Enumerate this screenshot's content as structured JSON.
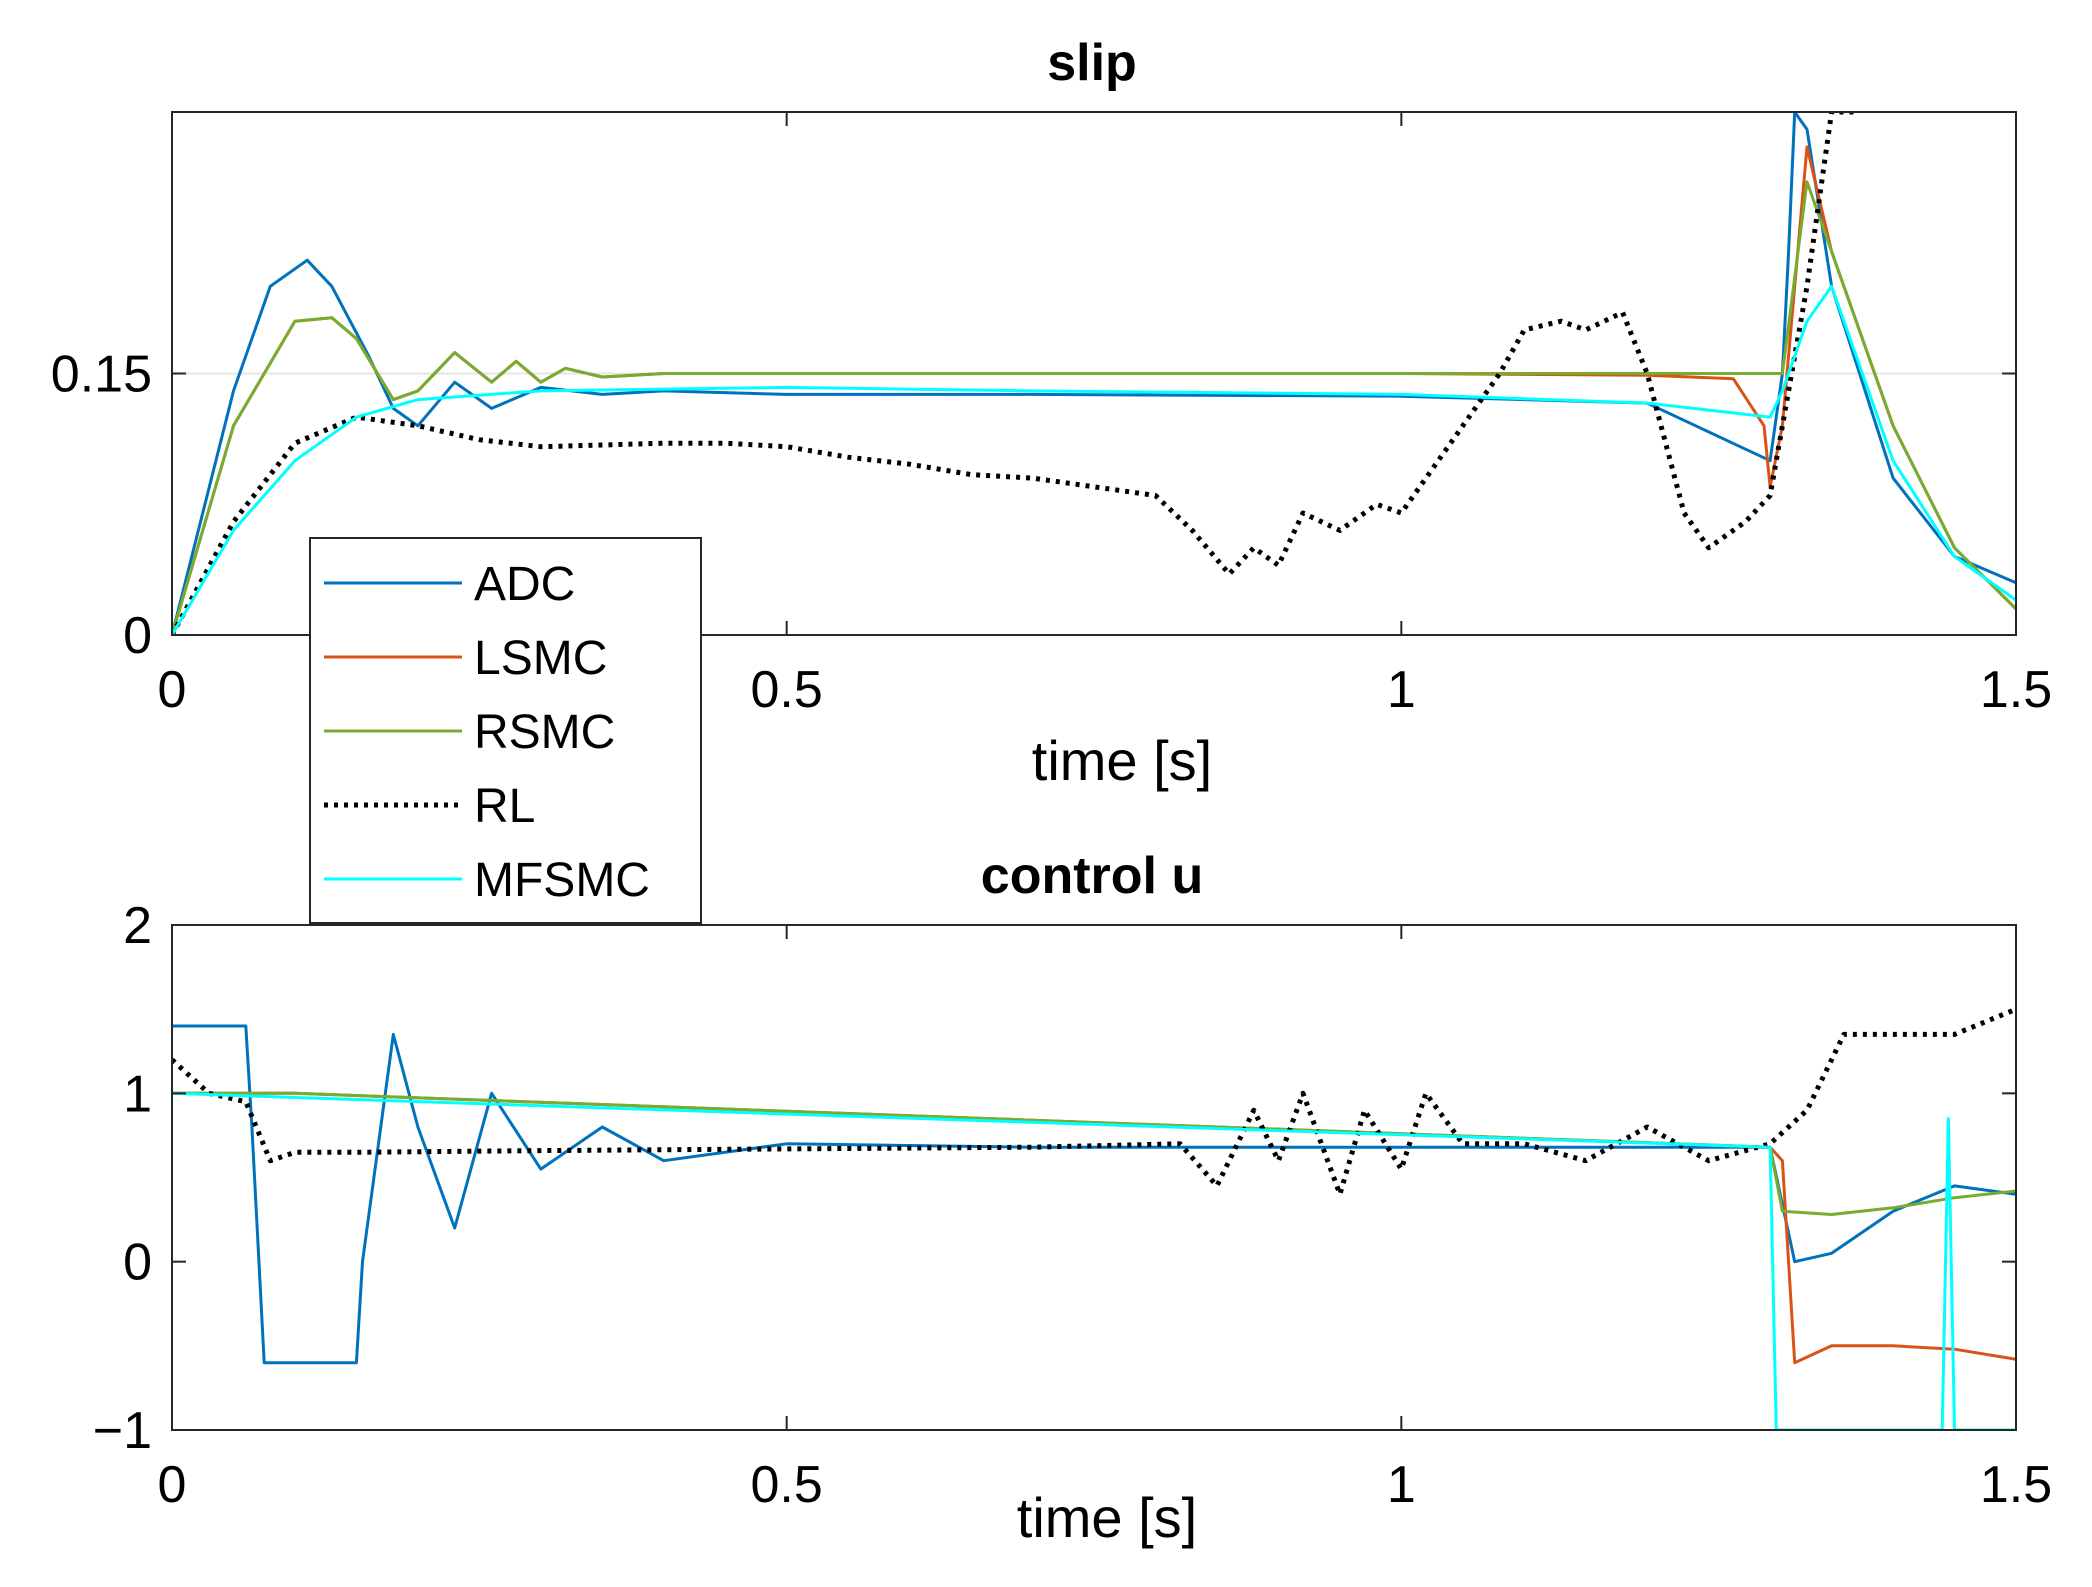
{
  "chart_data": [
    {
      "type": "line",
      "title": "slip",
      "xlabel": "time [s]",
      "ylabel": "",
      "xlim": [
        0,
        1.5
      ],
      "ylim": [
        0,
        0.3
      ],
      "xticks": [
        0,
        0.5,
        1,
        1.5
      ],
      "xtick_labels": [
        "0",
        "0.5",
        "1",
        "1.5"
      ],
      "yticks": [
        0,
        0.15
      ],
      "ytick_labels": [
        "0",
        "0.15"
      ],
      "reference_line": 0.15,
      "series": [
        {
          "name": "ADC",
          "color": "#0072BD",
          "style": "solid",
          "x": [
            0,
            0.05,
            0.08,
            0.11,
            0.13,
            0.16,
            0.18,
            0.2,
            0.23,
            0.26,
            0.3,
            0.35,
            0.4,
            0.5,
            0.7,
            1.0,
            1.2,
            1.3,
            1.31,
            1.315,
            1.32,
            1.33,
            1.35,
            1.4,
            1.45,
            1.5
          ],
          "y": [
            0,
            0.14,
            0.2,
            0.215,
            0.2,
            0.16,
            0.13,
            0.12,
            0.145,
            0.13,
            0.142,
            0.138,
            0.14,
            0.138,
            0.138,
            0.137,
            0.133,
            0.1,
            0.15,
            0.22,
            0.3,
            0.29,
            0.2,
            0.09,
            0.045,
            0.03
          ]
        },
        {
          "name": "LSMC",
          "color": "#D95319",
          "style": "solid",
          "x": [
            0,
            0.05,
            0.1,
            0.13,
            0.15,
            0.18,
            0.2,
            0.23,
            0.26,
            0.28,
            0.3,
            0.32,
            0.35,
            0.4,
            0.5,
            0.7,
            1.0,
            1.2,
            1.27,
            1.295,
            1.3,
            1.31,
            1.33,
            1.35,
            1.4,
            1.45,
            1.5
          ],
          "y": [
            0,
            0.12,
            0.18,
            0.182,
            0.17,
            0.135,
            0.14,
            0.162,
            0.145,
            0.157,
            0.145,
            0.153,
            0.148,
            0.15,
            0.15,
            0.15,
            0.15,
            0.149,
            0.147,
            0.12,
            0.085,
            0.12,
            0.28,
            0.22,
            0.12,
            0.05,
            0.015
          ]
        },
        {
          "name": "RSMC",
          "color": "#77AC30",
          "style": "solid",
          "x": [
            0,
            0.05,
            0.1,
            0.13,
            0.15,
            0.18,
            0.2,
            0.23,
            0.26,
            0.28,
            0.3,
            0.32,
            0.35,
            0.4,
            0.5,
            0.7,
            1.0,
            1.2,
            1.28,
            1.31,
            1.33,
            1.35,
            1.4,
            1.45,
            1.5
          ],
          "y": [
            0,
            0.12,
            0.18,
            0.182,
            0.17,
            0.135,
            0.14,
            0.162,
            0.145,
            0.157,
            0.145,
            0.153,
            0.148,
            0.15,
            0.15,
            0.15,
            0.15,
            0.15,
            0.15,
            0.15,
            0.26,
            0.22,
            0.12,
            0.05,
            0.015
          ]
        },
        {
          "name": "RL",
          "color": "#000000",
          "style": "dotted",
          "x": [
            0,
            0.05,
            0.1,
            0.15,
            0.2,
            0.25,
            0.3,
            0.35,
            0.4,
            0.45,
            0.5,
            0.55,
            0.6,
            0.65,
            0.7,
            0.75,
            0.8,
            0.83,
            0.86,
            0.88,
            0.9,
            0.92,
            0.95,
            0.98,
            1.0,
            1.03,
            1.05,
            1.08,
            1.1,
            1.13,
            1.15,
            1.18,
            1.2,
            1.23,
            1.25,
            1.28,
            1.3,
            1.33,
            1.35,
            1.36,
            1.37
          ],
          "y": [
            0,
            0.065,
            0.11,
            0.125,
            0.12,
            0.112,
            0.108,
            0.109,
            0.11,
            0.11,
            0.108,
            0.102,
            0.098,
            0.092,
            0.09,
            0.085,
            0.08,
            0.06,
            0.035,
            0.05,
            0.04,
            0.07,
            0.06,
            0.075,
            0.07,
            0.1,
            0.12,
            0.15,
            0.175,
            0.18,
            0.175,
            0.185,
            0.15,
            0.07,
            0.05,
            0.065,
            0.08,
            0.2,
            0.3,
            0.3,
            0.3
          ]
        },
        {
          "name": "MFSMC",
          "color": "#00FFFF",
          "style": "solid",
          "x": [
            0,
            0.05,
            0.1,
            0.15,
            0.2,
            0.3,
            0.5,
            0.7,
            1.0,
            1.2,
            1.3,
            1.31,
            1.33,
            1.35,
            1.4,
            1.45,
            1.5
          ],
          "y": [
            0,
            0.06,
            0.1,
            0.125,
            0.135,
            0.14,
            0.142,
            0.14,
            0.138,
            0.133,
            0.125,
            0.14,
            0.18,
            0.2,
            0.1,
            0.045,
            0.02
          ]
        }
      ]
    },
    {
      "type": "line",
      "title": "control u",
      "xlabel": "time [s]",
      "ylabel": "",
      "xlim": [
        0,
        1.5
      ],
      "ylim": [
        -1,
        2
      ],
      "xticks": [
        0,
        0.5,
        1,
        1.5
      ],
      "xtick_labels": [
        "0",
        "0.5",
        "1",
        "1.5"
      ],
      "yticks": [
        -1,
        0,
        1,
        2
      ],
      "ytick_labels": [
        "−1",
        "0",
        "1",
        "2"
      ],
      "series": [
        {
          "name": "ADC",
          "color": "#0072BD",
          "style": "solid",
          "x": [
            0,
            0.06,
            0.065,
            0.075,
            0.15,
            0.155,
            0.18,
            0.2,
            0.23,
            0.26,
            0.3,
            0.35,
            0.4,
            0.5,
            0.7,
            1.3,
            1.32,
            1.35,
            1.4,
            1.45,
            1.5
          ],
          "y": [
            1.4,
            1.4,
            0.8,
            -0.6,
            -0.6,
            0.0,
            1.35,
            0.8,
            0.2,
            1.0,
            0.55,
            0.8,
            0.6,
            0.7,
            0.68,
            0.68,
            0.0,
            0.05,
            0.3,
            0.45,
            0.4
          ]
        },
        {
          "name": "LSMC",
          "color": "#D95319",
          "style": "solid",
          "x": [
            0,
            0.1,
            1.3,
            1.31,
            1.32,
            1.35,
            1.4,
            1.45,
            1.5
          ],
          "y": [
            1.0,
            1.0,
            0.68,
            0.6,
            -0.6,
            -0.5,
            -0.5,
            -0.52,
            -0.58
          ]
        },
        {
          "name": "RSMC",
          "color": "#77AC30",
          "style": "solid",
          "x": [
            0,
            0.1,
            1.3,
            1.31,
            1.35,
            1.4,
            1.45,
            1.5
          ],
          "y": [
            1.0,
            1.0,
            0.68,
            0.3,
            0.28,
            0.32,
            0.38,
            0.42
          ]
        },
        {
          "name": "RL",
          "color": "#000000",
          "style": "dotted",
          "x": [
            0,
            0.03,
            0.06,
            0.08,
            0.1,
            0.15,
            0.3,
            0.5,
            0.7,
            0.82,
            0.85,
            0.88,
            0.9,
            0.92,
            0.95,
            0.97,
            1.0,
            1.02,
            1.05,
            1.1,
            1.15,
            1.2,
            1.25,
            1.3,
            1.33,
            1.36,
            1.4,
            1.45,
            1.5
          ],
          "y": [
            1.2,
            1.0,
            0.95,
            0.6,
            0.65,
            0.65,
            0.66,
            0.67,
            0.68,
            0.7,
            0.45,
            0.9,
            0.6,
            1.0,
            0.4,
            0.9,
            0.55,
            1.0,
            0.7,
            0.7,
            0.6,
            0.8,
            0.6,
            0.7,
            0.9,
            1.35,
            1.35,
            1.35,
            1.5
          ]
        },
        {
          "name": "MFSMC",
          "color": "#00FFFF",
          "style": "solid",
          "x": [
            0,
            1.3,
            1.305,
            1.44,
            1.445,
            1.45,
            1.5
          ],
          "y": [
            1.0,
            0.68,
            -1.0,
            -1.0,
            0.85,
            -1.0,
            -1.0
          ]
        }
      ]
    }
  ],
  "legend": {
    "entries": [
      "ADC",
      "LSMC",
      "RSMC",
      "RL",
      "MFSMC"
    ],
    "placement": "overlapping lower-left of slip plot"
  }
}
